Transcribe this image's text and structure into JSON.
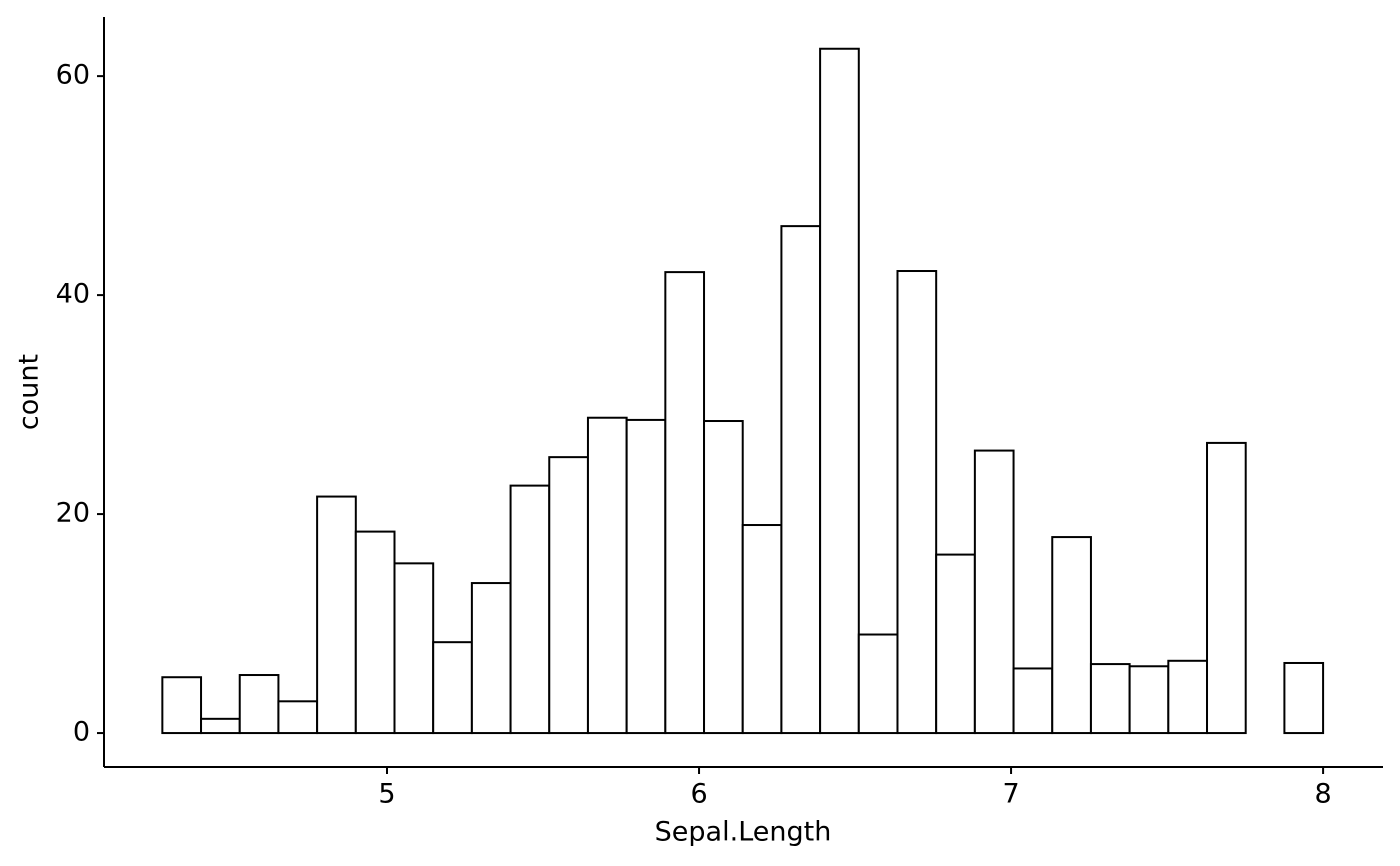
{
  "chart_data": {
    "type": "histogram",
    "x_label": "Sepal.Length",
    "y_label": "count",
    "bins": [
      4.28,
      4.404,
      4.528,
      4.652,
      4.776,
      4.9,
      5.024,
      5.148,
      5.272,
      5.396,
      5.52,
      5.644,
      5.768,
      5.892,
      6.016,
      6.14,
      6.264,
      6.388,
      6.512,
      6.636,
      6.76,
      6.884,
      7.008,
      7.132,
      7.256,
      7.38,
      7.504,
      7.628,
      7.752,
      7.876,
      8.0
    ],
    "counts": [
      5.1,
      1.3,
      5.3,
      2.9,
      21.6,
      18.4,
      15.5,
      8.3,
      13.7,
      22.6,
      25.2,
      28.8,
      28.6,
      42.1,
      28.5,
      19.0,
      46.3,
      62.5,
      9.0,
      42.2,
      16.3,
      25.8,
      5.9,
      17.9,
      6.3,
      6.1,
      6.6,
      26.5,
      0,
      6.4
    ],
    "color": "#ffffff",
    "edge_color": "#000000",
    "xlim": [
      4.093,
      8.192
    ],
    "xticks": [
      5,
      6,
      7,
      8
    ],
    "ylim": [
      -3.1,
      65.4
    ],
    "yticks": [
      0,
      20,
      40,
      60
    ]
  }
}
